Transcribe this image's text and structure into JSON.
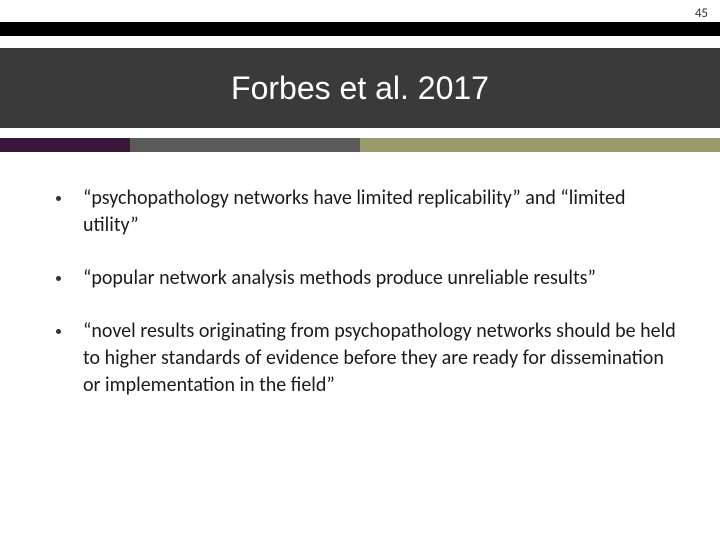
{
  "page_number": "45",
  "title": "Forbes et al. 2017",
  "title_band_color": "#3a3a3a",
  "top_bar_color": "#000000",
  "accent_stripe": {
    "segments": [
      {
        "color": "#3a173a",
        "width_pct": 18
      },
      {
        "color": "#5a5a5a",
        "width_pct": 32
      },
      {
        "color": "#9a9a6a",
        "width_pct": 50
      }
    ]
  },
  "bullets": [
    "“psychopathology networks have limited replicability” and “limited utility”",
    "“popular network analysis methods produce unreliable results”",
    "“novel results originating from psychopathology networks should be held to higher standards of evidence before they are ready for dissemination or implementation in the field”"
  ],
  "text_color": "#1a1a1a",
  "background_color": "#ffffff"
}
